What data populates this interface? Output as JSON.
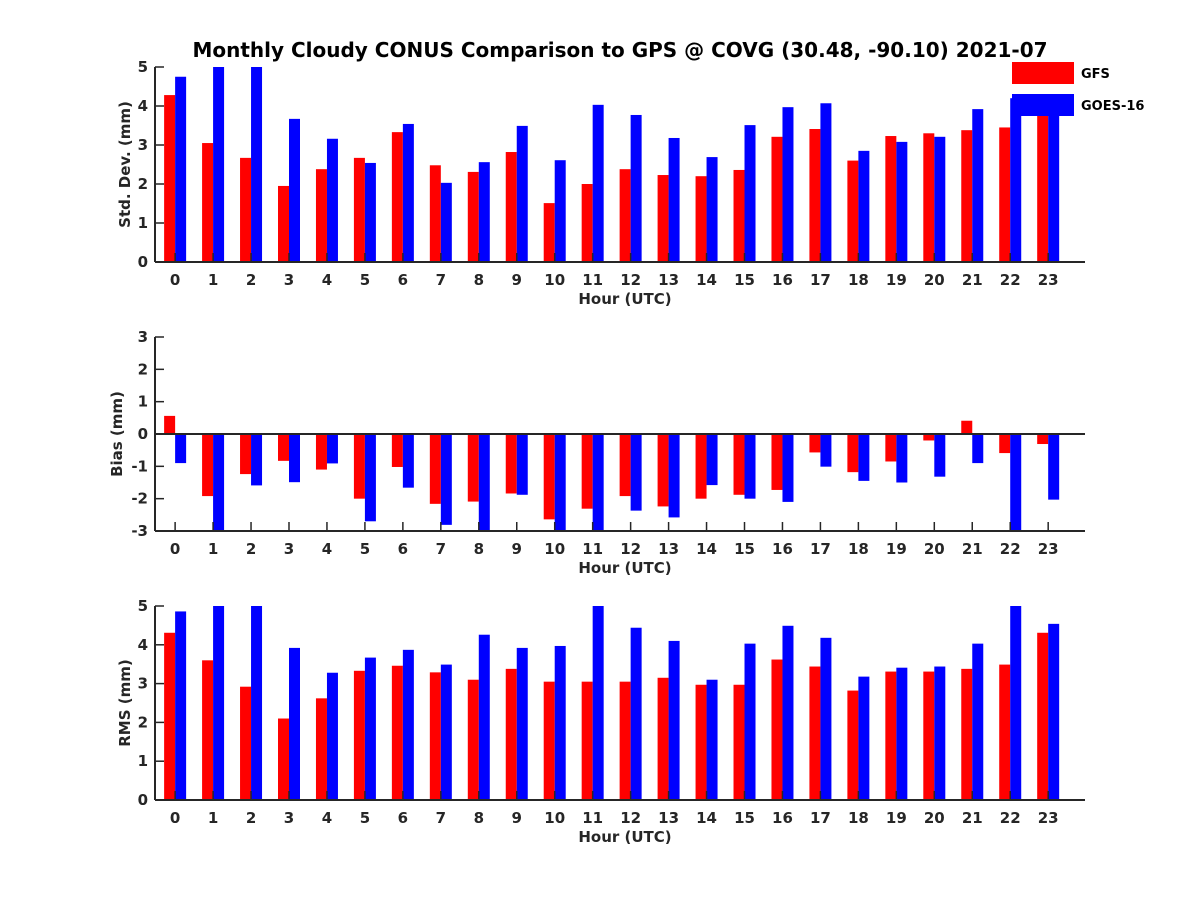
{
  "title": "Monthly Cloudy CONUS Comparison to GPS @ COVG (30.48, -90.10) 2021-07",
  "colors": {
    "GFS": "#ff0000",
    "GOES-16": "#0000ff",
    "axis": "#262626"
  },
  "legend": {
    "placement": "top-right",
    "entries": [
      "GFS",
      "GOES-16"
    ]
  },
  "chart_data": [
    {
      "type": "bar",
      "xlabel": "Hour (UTC)",
      "ylabel": "Std. Dev. (mm)",
      "ylim": [
        0,
        5
      ],
      "yticks": [
        "0",
        "1",
        "2",
        "3",
        "4",
        "5"
      ],
      "categories": [
        "0",
        "1",
        "2",
        "3",
        "4",
        "5",
        "6",
        "7",
        "8",
        "9",
        "10",
        "11",
        "12",
        "13",
        "14",
        "15",
        "16",
        "17",
        "18",
        "19",
        "20",
        "21",
        "22",
        "23"
      ],
      "series": [
        {
          "name": "GFS",
          "values": [
            4.28,
            3.05,
            2.67,
            1.95,
            2.38,
            2.67,
            3.33,
            2.48,
            2.31,
            2.82,
            1.51,
            2.0,
            2.38,
            2.23,
            2.2,
            2.36,
            3.21,
            3.41,
            2.6,
            3.23,
            3.3,
            3.38,
            3.45,
            3.8
          ]
        },
        {
          "name": "GOES-16",
          "values": [
            4.75,
            5.0,
            5.0,
            3.67,
            3.16,
            2.54,
            3.54,
            2.03,
            2.56,
            3.49,
            2.61,
            4.03,
            3.77,
            3.18,
            2.69,
            3.51,
            3.97,
            4.07,
            2.85,
            3.08,
            3.21,
            3.92,
            4.2,
            3.8
          ]
        }
      ],
      "grid": false
    },
    {
      "type": "bar",
      "xlabel": "Hour (UTC)",
      "ylabel": "Bias (mm)",
      "ylim": [
        -3,
        3
      ],
      "yticks": [
        "-3",
        "-2",
        "-1",
        "0",
        "1",
        "2",
        "3"
      ],
      "categories": [
        "0",
        "1",
        "2",
        "3",
        "4",
        "5",
        "6",
        "7",
        "8",
        "9",
        "10",
        "11",
        "12",
        "13",
        "14",
        "15",
        "16",
        "17",
        "18",
        "19",
        "20",
        "21",
        "22",
        "23"
      ],
      "series": [
        {
          "name": "GFS",
          "values": [
            0.56,
            -1.92,
            -1.24,
            -0.83,
            -1.1,
            -2.0,
            -1.02,
            -2.16,
            -2.09,
            -1.84,
            -2.64,
            -2.31,
            -1.92,
            -2.24,
            -2.0,
            -1.88,
            -1.73,
            -0.57,
            -1.18,
            -0.85,
            -0.2,
            0.41,
            -0.59,
            -0.31
          ]
        },
        {
          "name": "GOES-16",
          "values": [
            -0.9,
            -3.0,
            -1.59,
            -1.49,
            -0.91,
            -2.7,
            -1.66,
            -2.81,
            -3.0,
            -1.88,
            -3.0,
            -3.0,
            -2.37,
            -2.58,
            -1.58,
            -2.0,
            -2.1,
            -1.01,
            -1.45,
            -1.5,
            -1.32,
            -0.9,
            -3.0,
            -2.03
          ]
        }
      ],
      "grid": false
    },
    {
      "type": "bar",
      "xlabel": "Hour (UTC)",
      "ylabel": "RMS (mm)",
      "ylim": [
        0,
        5
      ],
      "yticks": [
        "0",
        "1",
        "2",
        "3",
        "4",
        "5"
      ],
      "categories": [
        "0",
        "1",
        "2",
        "3",
        "4",
        "5",
        "6",
        "7",
        "8",
        "9",
        "10",
        "11",
        "12",
        "13",
        "14",
        "15",
        "16",
        "17",
        "18",
        "19",
        "20",
        "21",
        "22",
        "23"
      ],
      "series": [
        {
          "name": "GFS",
          "values": [
            4.31,
            3.6,
            2.92,
            2.1,
            2.62,
            3.33,
            3.46,
            3.29,
            3.1,
            3.38,
            3.05,
            3.05,
            3.05,
            3.15,
            2.97,
            2.97,
            3.62,
            3.44,
            2.82,
            3.31,
            3.31,
            3.38,
            3.49,
            4.31
          ]
        },
        {
          "name": "GOES-16",
          "values": [
            4.86,
            5.0,
            5.0,
            3.92,
            3.28,
            3.67,
            3.87,
            3.49,
            4.26,
            3.92,
            3.97,
            5.0,
            4.44,
            4.1,
            3.1,
            4.03,
            4.49,
            4.18,
            3.18,
            3.41,
            3.44,
            4.03,
            5.0,
            4.54
          ]
        }
      ],
      "grid": false
    }
  ]
}
